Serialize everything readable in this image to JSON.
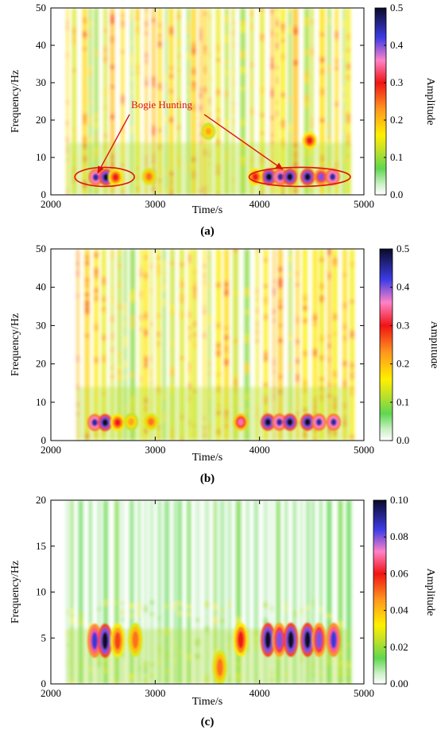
{
  "chart_data": [
    {
      "type": "heatmap",
      "panel_label": "(a)",
      "xlabel": "Time/s",
      "ylabel": "Frequency/Hz",
      "colorbar_label": "Amplitude",
      "xlim": [
        2000,
        5000
      ],
      "ylim": [
        0,
        50
      ],
      "xticks": [
        2000,
        3000,
        4000,
        5000
      ],
      "yticks": [
        0,
        10,
        20,
        30,
        40,
        50
      ],
      "colorbar_range": [
        0,
        0.5
      ],
      "colorbar_ticks": [
        "0.0",
        "0.1",
        "0.2",
        "0.3",
        "0.4",
        "0.5"
      ],
      "data_range": [
        2150,
        4880
      ],
      "annotation": {
        "text": "Bogie Hunting",
        "arrow_targets": [
          [
            2450,
            5
          ],
          [
            4220,
            6
          ]
        ],
        "ellipses": [
          {
            "x_range": [
              2230,
              2800
            ],
            "y_center": 4.8
          },
          {
            "x_range": [
              3900,
              4870
            ],
            "y_center": 4.8
          }
        ]
      },
      "hotspots": [
        {
          "t": 2430,
          "f": 4.7,
          "amp": 0.45
        },
        {
          "t": 2530,
          "f": 4.7,
          "amp": 0.5
        },
        {
          "t": 2620,
          "f": 4.7,
          "amp": 0.3
        },
        {
          "t": 2940,
          "f": 4.9,
          "amp": 0.25
        },
        {
          "t": 3960,
          "f": 4.8,
          "amp": 0.3
        },
        {
          "t": 4090,
          "f": 4.8,
          "amp": 0.5
        },
        {
          "t": 4200,
          "f": 4.8,
          "amp": 0.45
        },
        {
          "t": 4290,
          "f": 4.8,
          "amp": 0.5
        },
        {
          "t": 4460,
          "f": 4.8,
          "amp": 0.5
        },
        {
          "t": 4590,
          "f": 4.8,
          "amp": 0.4
        },
        {
          "t": 4700,
          "f": 4.8,
          "amp": 0.45
        },
        {
          "t": 4480,
          "f": 14.5,
          "amp": 0.3
        },
        {
          "t": 3510,
          "f": 17,
          "amp": 0.22
        }
      ]
    },
    {
      "type": "heatmap",
      "panel_label": "(b)",
      "xlabel": "Time/s",
      "ylabel": "Frequency/Hz",
      "colorbar_label": "Amplitude",
      "xlim": [
        2000,
        5000
      ],
      "ylim": [
        0,
        50
      ],
      "xticks": [
        2000,
        3000,
        4000,
        5000
      ],
      "yticks": [
        0,
        10,
        20,
        30,
        40,
        50
      ],
      "colorbar_range": [
        0,
        0.5
      ],
      "colorbar_ticks": [
        "0.0",
        "0.1",
        "0.2",
        "0.3",
        "0.4",
        "0.5"
      ],
      "data_range": [
        2250,
        4870
      ],
      "hotspots": [
        {
          "t": 2420,
          "f": 4.7,
          "amp": 0.45
        },
        {
          "t": 2520,
          "f": 4.7,
          "amp": 0.5
        },
        {
          "t": 2640,
          "f": 4.7,
          "amp": 0.3
        },
        {
          "t": 2770,
          "f": 4.9,
          "amp": 0.22
        },
        {
          "t": 2960,
          "f": 4.9,
          "amp": 0.25
        },
        {
          "t": 3820,
          "f": 4.8,
          "amp": 0.35
        },
        {
          "t": 4080,
          "f": 4.8,
          "amp": 0.5
        },
        {
          "t": 4190,
          "f": 4.8,
          "amp": 0.45
        },
        {
          "t": 4290,
          "f": 4.8,
          "amp": 0.5
        },
        {
          "t": 4460,
          "f": 4.8,
          "amp": 0.5
        },
        {
          "t": 4570,
          "f": 4.8,
          "amp": 0.45
        },
        {
          "t": 4710,
          "f": 4.8,
          "amp": 0.45
        }
      ]
    },
    {
      "type": "heatmap",
      "panel_label": "(c)",
      "xlabel": "Time/s",
      "ylabel": "Frequency/Hz",
      "colorbar_label": "Amplitude",
      "xlim": [
        2000,
        5000
      ],
      "ylim": [
        0,
        20
      ],
      "xticks": [
        2000,
        3000,
        4000,
        5000
      ],
      "yticks": [
        0,
        5,
        10,
        15,
        20
      ],
      "colorbar_range": [
        0,
        0.1
      ],
      "colorbar_ticks": [
        "0.00",
        "0.02",
        "0.04",
        "0.06",
        "0.08",
        "0.10"
      ],
      "data_range": [
        2150,
        4880
      ],
      "hotspots": [
        {
          "t": 2420,
          "f": 4.7,
          "amp": 0.085
        },
        {
          "t": 2520,
          "f": 4.7,
          "amp": 0.1
        },
        {
          "t": 2640,
          "f": 4.7,
          "amp": 0.055
        },
        {
          "t": 2810,
          "f": 4.8,
          "amp": 0.05
        },
        {
          "t": 3620,
          "f": 1.8,
          "amp": 0.05
        },
        {
          "t": 3820,
          "f": 4.8,
          "amp": 0.06
        },
        {
          "t": 4080,
          "f": 4.8,
          "amp": 0.1
        },
        {
          "t": 4190,
          "f": 4.8,
          "amp": 0.08
        },
        {
          "t": 4300,
          "f": 4.8,
          "amp": 0.1
        },
        {
          "t": 4460,
          "f": 4.8,
          "amp": 0.1
        },
        {
          "t": 4570,
          "f": 4.8,
          "amp": 0.08
        },
        {
          "t": 4710,
          "f": 4.8,
          "amp": 0.085
        }
      ]
    }
  ]
}
